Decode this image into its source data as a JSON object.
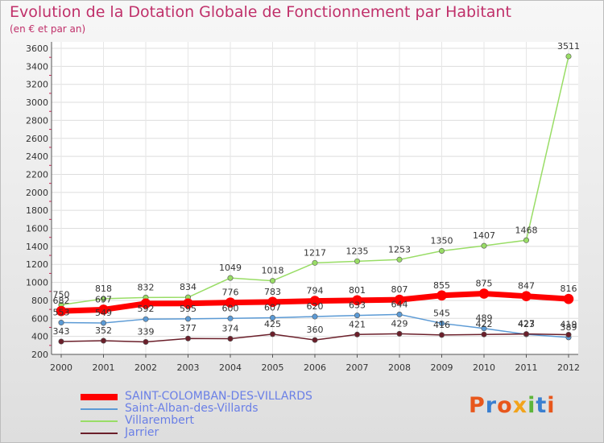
{
  "title": "Evolution de la Dotation Globale de Fonctionnement par Habitant",
  "subtitle": "(en € et par an)",
  "logo_text": "Proxiti",
  "chart_data": {
    "type": "line",
    "title": "Evolution de la Dotation Globale de Fonctionnement par Habitant",
    "subtitle": "(en € et par an)",
    "xlabel": "",
    "ylabel": "",
    "x": [
      "2000",
      "2001",
      "2002",
      "2003",
      "2004",
      "2005",
      "2006",
      "2007",
      "2008",
      "2009",
      "2010",
      "2011",
      "2012"
    ],
    "ylim": [
      200,
      3600
    ],
    "yticks": [
      200,
      400,
      600,
      800,
      1000,
      1200,
      1400,
      1600,
      1800,
      2000,
      2200,
      2400,
      2600,
      2800,
      3000,
      3200,
      3400,
      3600
    ],
    "grid": true,
    "legend_position": "bottom-left",
    "series": [
      {
        "name": "SAINT-COLOMBAN-DES-VILLARDS",
        "color": "#ff0000",
        "emphasis": true,
        "values": [
          682,
          697,
          765,
          766,
          776,
          783,
          794,
          801,
          807,
          855,
          875,
          847,
          816
        ],
        "labels": [
          "682",
          "697",
          "",
          "",
          "776",
          "783",
          "794",
          "801",
          "807",
          "855",
          "875",
          "847",
          "816"
        ]
      },
      {
        "name": "Saint-Alban-des-Villards",
        "color": "#5b9ad5",
        "emphasis": false,
        "values": [
          553,
          549,
          592,
          595,
          600,
          607,
          620,
          633,
          644,
          545,
          489,
          423,
          389
        ],
        "labels": [
          "553",
          "549",
          "592",
          "595",
          "600",
          "607",
          "620",
          "633",
          "644",
          "545",
          "489",
          "423",
          "389"
        ]
      },
      {
        "name": "Villarembert",
        "color": "#99dd66",
        "emphasis": false,
        "values": [
          750,
          818,
          832,
          834,
          1049,
          1018,
          1217,
          1235,
          1253,
          1350,
          1407,
          1468,
          3511
        ],
        "labels": [
          "750",
          "818",
          "832",
          "834",
          "1049",
          "1018",
          "1217",
          "1235",
          "1253",
          "1350",
          "1407",
          "1468",
          "3511"
        ]
      },
      {
        "name": "Jarrier",
        "color": "#6b1f2a",
        "emphasis": false,
        "values": [
          343,
          352,
          339,
          377,
          374,
          425,
          360,
          421,
          429,
          416,
          422,
          427,
          419
        ],
        "labels": [
          "343",
          "352",
          "339",
          "377",
          "374",
          "425",
          "360",
          "421",
          "429",
          "416",
          "422",
          "427",
          "419"
        ]
      }
    ]
  }
}
